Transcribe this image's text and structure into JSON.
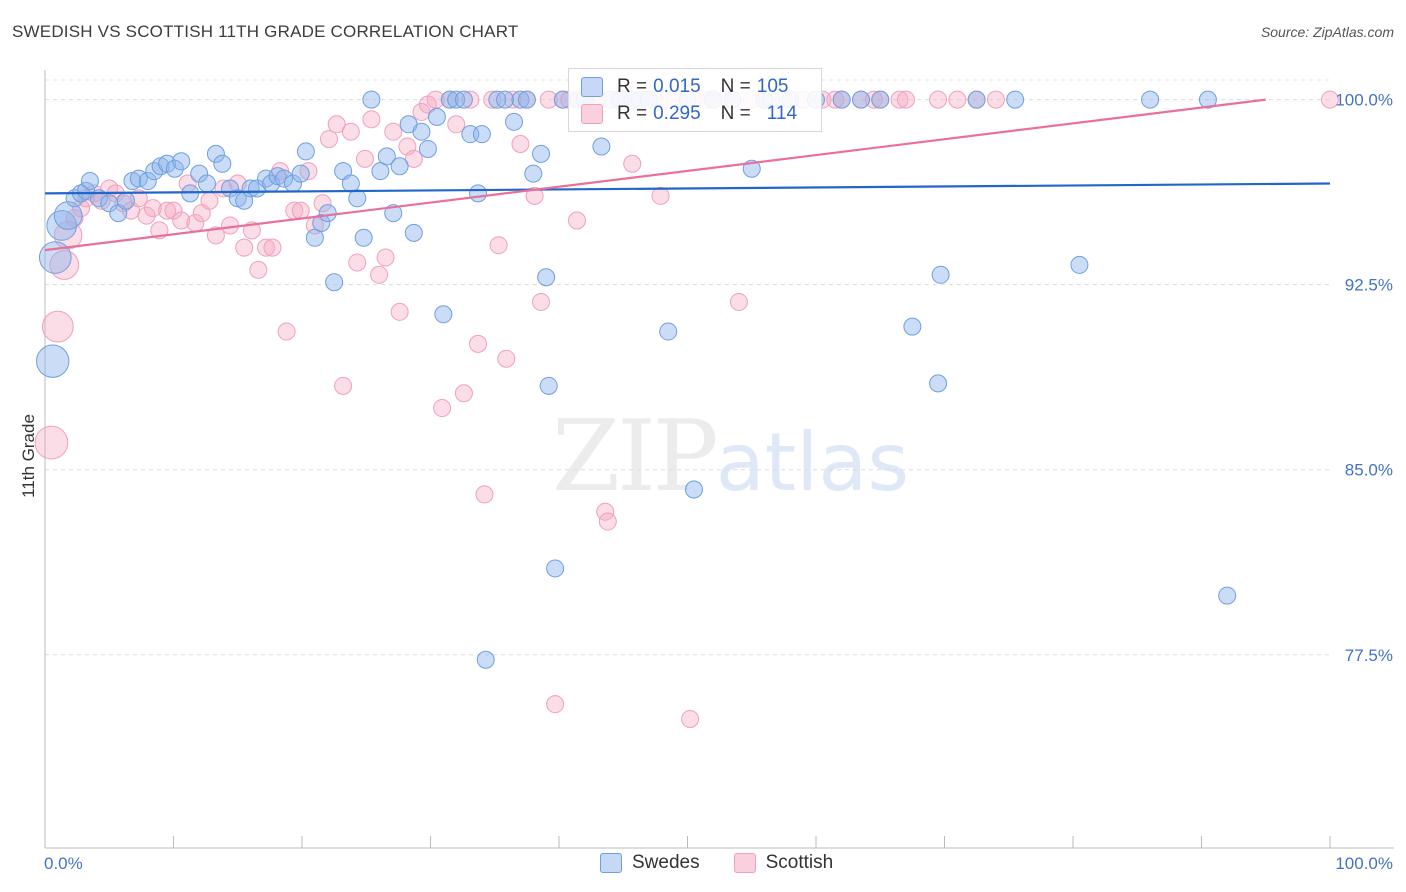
{
  "title": "SWEDISH VS SCOTTISH 11TH GRADE CORRELATION CHART",
  "source": "Source: ZipAtlas.com",
  "watermark": {
    "zip": "ZIP",
    "atlas": "atlas"
  },
  "colors": {
    "swedes": "#6f9fe0",
    "scottish": "#f0a0bc",
    "swedes_line": "#2266cc",
    "scottish_line": "#e8709a",
    "tick_text": "#4472c4"
  },
  "legend": {
    "swedes": {
      "r_label": "R =",
      "r_value": "0.015",
      "n_label": "N =",
      "n_value": "105"
    },
    "scottish": {
      "r_label": "R =",
      "r_value": "0.295",
      "n_label": "N =",
      "n_value": "114"
    }
  },
  "bottom_legend": {
    "swedes": "Swedes",
    "scottish": "Scottish"
  },
  "chart_data": {
    "type": "scatter",
    "title": "SWEDISH VS SCOTTISH 11TH GRADE CORRELATION CHART",
    "xlabel": "",
    "ylabel": "11th Grade",
    "xlim": [
      0,
      100
    ],
    "ylim": [
      70.4,
      101.2
    ],
    "x_tick_labels": [
      "0.0%",
      "100.0%"
    ],
    "y_ticks": [
      77.5,
      85.0,
      92.5,
      100.0
    ],
    "y_tick_labels": [
      "77.5%",
      "85.0%",
      "92.5%",
      "100.0%"
    ],
    "grid": "horizontal dashed",
    "legend_position": "top-center",
    "series": [
      {
        "name": "Swedes",
        "r": 0.015,
        "n": 105,
        "trend": {
          "x": [
            0,
            100
          ],
          "y": [
            96.2,
            96.6
          ]
        },
        "points": [
          [
            0.6,
            89.4
          ],
          [
            0.8,
            93.6
          ],
          [
            1.3,
            94.9
          ],
          [
            1.8,
            95.3
          ],
          [
            2.3,
            96.0
          ],
          [
            2.8,
            96.2
          ],
          [
            3.2,
            96.3
          ],
          [
            3.5,
            96.7
          ],
          [
            4.2,
            96.0
          ],
          [
            5.0,
            95.8
          ],
          [
            5.7,
            95.4
          ],
          [
            6.3,
            95.9
          ],
          [
            6.8,
            96.7
          ],
          [
            7.3,
            96.8
          ],
          [
            8.0,
            96.7
          ],
          [
            8.5,
            97.1
          ],
          [
            9.0,
            97.3
          ],
          [
            9.5,
            97.4
          ],
          [
            10.1,
            97.2
          ],
          [
            10.6,
            97.5
          ],
          [
            11.3,
            96.2
          ],
          [
            12.0,
            97.0
          ],
          [
            12.6,
            96.6
          ],
          [
            13.3,
            97.8
          ],
          [
            13.8,
            97.4
          ],
          [
            14.4,
            96.4
          ],
          [
            15.0,
            96.0
          ],
          [
            15.5,
            95.9
          ],
          [
            16.0,
            96.4
          ],
          [
            16.5,
            96.4
          ],
          [
            17.2,
            96.8
          ],
          [
            17.6,
            96.6
          ],
          [
            18.1,
            96.9
          ],
          [
            18.6,
            96.8
          ],
          [
            19.3,
            96.6
          ],
          [
            19.9,
            97.0
          ],
          [
            20.3,
            97.9
          ],
          [
            21.0,
            94.4
          ],
          [
            21.5,
            95.0
          ],
          [
            22.0,
            95.4
          ],
          [
            22.5,
            92.6
          ],
          [
            23.2,
            97.1
          ],
          [
            23.8,
            96.6
          ],
          [
            24.3,
            96.0
          ],
          [
            24.8,
            94.4
          ],
          [
            25.4,
            100.0
          ],
          [
            26.1,
            97.1
          ],
          [
            26.6,
            97.7
          ],
          [
            27.1,
            95.4
          ],
          [
            27.6,
            97.3
          ],
          [
            28.3,
            99.0
          ],
          [
            28.7,
            94.6
          ],
          [
            29.3,
            98.7
          ],
          [
            29.8,
            98.0
          ],
          [
            30.5,
            99.3
          ],
          [
            31.0,
            91.3
          ],
          [
            31.5,
            100.0
          ],
          [
            32.0,
            100.0
          ],
          [
            32.6,
            100.0
          ],
          [
            33.1,
            98.6
          ],
          [
            33.7,
            96.2
          ],
          [
            34.0,
            98.6
          ],
          [
            34.3,
            77.3
          ],
          [
            35.2,
            100.0
          ],
          [
            35.8,
            100.0
          ],
          [
            36.5,
            99.1
          ],
          [
            37.0,
            100.0
          ],
          [
            37.5,
            100.0
          ],
          [
            38.0,
            97.0
          ],
          [
            38.6,
            97.8
          ],
          [
            39.0,
            92.8
          ],
          [
            40.3,
            100.0
          ],
          [
            39.7,
            81.0
          ],
          [
            39.2,
            88.4
          ],
          [
            41.5,
            100.0
          ],
          [
            42.0,
            100.0
          ],
          [
            42.7,
            99.6
          ],
          [
            43.3,
            98.1
          ],
          [
            44.0,
            100.0
          ],
          [
            44.8,
            100.0
          ],
          [
            45.7,
            100.0
          ],
          [
            46.3,
            100.0
          ],
          [
            47.0,
            100.0
          ],
          [
            48.5,
            90.6
          ],
          [
            50.0,
            100.0
          ],
          [
            50.5,
            84.2
          ],
          [
            52.0,
            100.0
          ],
          [
            53.5,
            100.0
          ],
          [
            55.0,
            97.2
          ],
          [
            56.0,
            100.0
          ],
          [
            56.5,
            100.0
          ],
          [
            58.0,
            100.0
          ],
          [
            60.0,
            100.0
          ],
          [
            62.0,
            100.0
          ],
          [
            63.5,
            100.0
          ],
          [
            65.0,
            100.0
          ],
          [
            67.5,
            90.8
          ],
          [
            69.5,
            88.5
          ],
          [
            69.7,
            92.9
          ],
          [
            72.5,
            100.0
          ],
          [
            75.5,
            100.0
          ],
          [
            80.5,
            93.3
          ],
          [
            86.0,
            100.0
          ],
          [
            90.5,
            100.0
          ],
          [
            92.0,
            79.9
          ]
        ]
      },
      {
        "name": "Scottish",
        "r": 0.295,
        "n": 114,
        "trend": {
          "x": [
            0,
            95
          ],
          "y": [
            93.9,
            100.0
          ]
        },
        "points": [
          [
            0.5,
            86.1
          ],
          [
            1.0,
            90.8
          ],
          [
            1.5,
            93.3
          ],
          [
            1.8,
            94.5
          ],
          [
            2.3,
            95.2
          ],
          [
            2.8,
            95.6
          ],
          [
            3.2,
            96.0
          ],
          [
            3.8,
            96.2
          ],
          [
            4.4,
            95.9
          ],
          [
            5.0,
            96.4
          ],
          [
            5.5,
            96.2
          ],
          [
            6.1,
            95.8
          ],
          [
            6.7,
            95.5
          ],
          [
            7.3,
            96.0
          ],
          [
            7.9,
            95.3
          ],
          [
            8.4,
            95.6
          ],
          [
            8.9,
            94.7
          ],
          [
            9.5,
            95.5
          ],
          [
            10.0,
            95.5
          ],
          [
            10.6,
            95.1
          ],
          [
            11.1,
            96.6
          ],
          [
            11.7,
            95.0
          ],
          [
            12.2,
            95.4
          ],
          [
            12.8,
            95.9
          ],
          [
            13.3,
            94.5
          ],
          [
            13.9,
            96.4
          ],
          [
            14.4,
            94.9
          ],
          [
            15.0,
            96.6
          ],
          [
            15.5,
            94.0
          ],
          [
            16.1,
            94.7
          ],
          [
            16.6,
            93.1
          ],
          [
            17.2,
            94.0
          ],
          [
            17.7,
            94.0
          ],
          [
            18.3,
            97.1
          ],
          [
            18.8,
            90.6
          ],
          [
            19.4,
            95.5
          ],
          [
            19.9,
            95.5
          ],
          [
            20.5,
            97.1
          ],
          [
            21.0,
            94.9
          ],
          [
            21.6,
            95.8
          ],
          [
            22.1,
            98.4
          ],
          [
            22.7,
            99.0
          ],
          [
            23.2,
            88.4
          ],
          [
            23.8,
            98.7
          ],
          [
            24.3,
            93.4
          ],
          [
            24.9,
            97.6
          ],
          [
            25.4,
            99.2
          ],
          [
            26.0,
            92.9
          ],
          [
            26.5,
            93.6
          ],
          [
            27.1,
            98.7
          ],
          [
            27.6,
            91.4
          ],
          [
            28.2,
            98.1
          ],
          [
            28.7,
            97.6
          ],
          [
            29.3,
            99.5
          ],
          [
            29.8,
            99.8
          ],
          [
            30.4,
            100.0
          ],
          [
            30.9,
            87.5
          ],
          [
            31.5,
            100.0
          ],
          [
            32.0,
            99.0
          ],
          [
            32.6,
            88.1
          ],
          [
            33.1,
            100.0
          ],
          [
            33.7,
            90.1
          ],
          [
            34.2,
            84.0
          ],
          [
            34.8,
            100.0
          ],
          [
            35.3,
            94.1
          ],
          [
            35.9,
            89.5
          ],
          [
            36.4,
            100.0
          ],
          [
            37.0,
            98.2
          ],
          [
            37.5,
            100.0
          ],
          [
            38.1,
            96.1
          ],
          [
            38.6,
            91.8
          ],
          [
            39.2,
            100.0
          ],
          [
            39.7,
            75.5
          ],
          [
            40.3,
            100.0
          ],
          [
            40.8,
            100.0
          ],
          [
            41.4,
            95.1
          ],
          [
            41.9,
            100.0
          ],
          [
            42.5,
            100.0
          ],
          [
            43.0,
            100.0
          ],
          [
            43.6,
            83.3
          ],
          [
            43.8,
            82.9
          ],
          [
            44.6,
            100.0
          ],
          [
            45.2,
            100.0
          ],
          [
            45.7,
            97.4
          ],
          [
            46.3,
            100.0
          ],
          [
            46.8,
            100.0
          ],
          [
            47.4,
            100.0
          ],
          [
            47.9,
            96.1
          ],
          [
            48.5,
            100.0
          ],
          [
            49.0,
            100.0
          ],
          [
            50.5,
            100.0
          ],
          [
            52.0,
            100.0
          ],
          [
            53.5,
            100.0
          ],
          [
            54.0,
            91.8
          ],
          [
            55.0,
            100.0
          ],
          [
            56.0,
            100.0
          ],
          [
            57.5,
            100.0
          ],
          [
            59.0,
            100.0
          ],
          [
            60.5,
            100.0
          ],
          [
            62.0,
            100.0
          ],
          [
            63.5,
            100.0
          ],
          [
            65.0,
            100.0
          ],
          [
            66.5,
            100.0
          ],
          [
            50.2,
            74.9
          ],
          [
            51.5,
            100.0
          ],
          [
            53.0,
            100.0
          ],
          [
            61.5,
            100.0
          ],
          [
            64.5,
            100.0
          ],
          [
            67.0,
            100.0
          ],
          [
            69.5,
            100.0
          ],
          [
            71.0,
            100.0
          ],
          [
            72.5,
            100.0
          ],
          [
            74.0,
            100.0
          ],
          [
            100.0,
            100.0
          ]
        ]
      }
    ]
  }
}
